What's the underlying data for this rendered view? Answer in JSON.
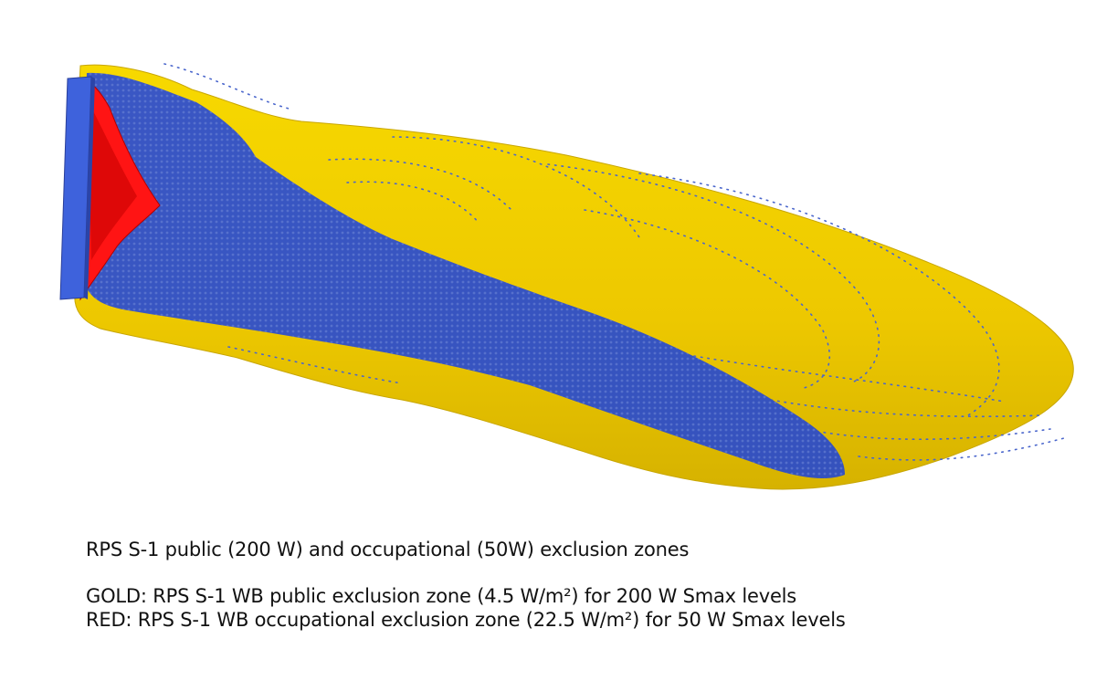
{
  "caption": {
    "title": "RPS S-1 public (200 W) and occupational (50W) exclusion zones",
    "gold": "GOLD: RPS S-1 WB public exclusion zone (4.5 W/m²) for 200 W Smax levels",
    "red": "RED: RPS S-1 WB occupational exclusion zone (22.5 W/m²) for 50 W Smax levels"
  },
  "colors": {
    "public_zone": "#f2d000",
    "public_zone_dark": "#c9a800",
    "occupational_zone": "#ff1010",
    "antenna_panel": "#3a5fd8",
    "point_cloud": "#3c58c0",
    "background": "#ffffff"
  }
}
